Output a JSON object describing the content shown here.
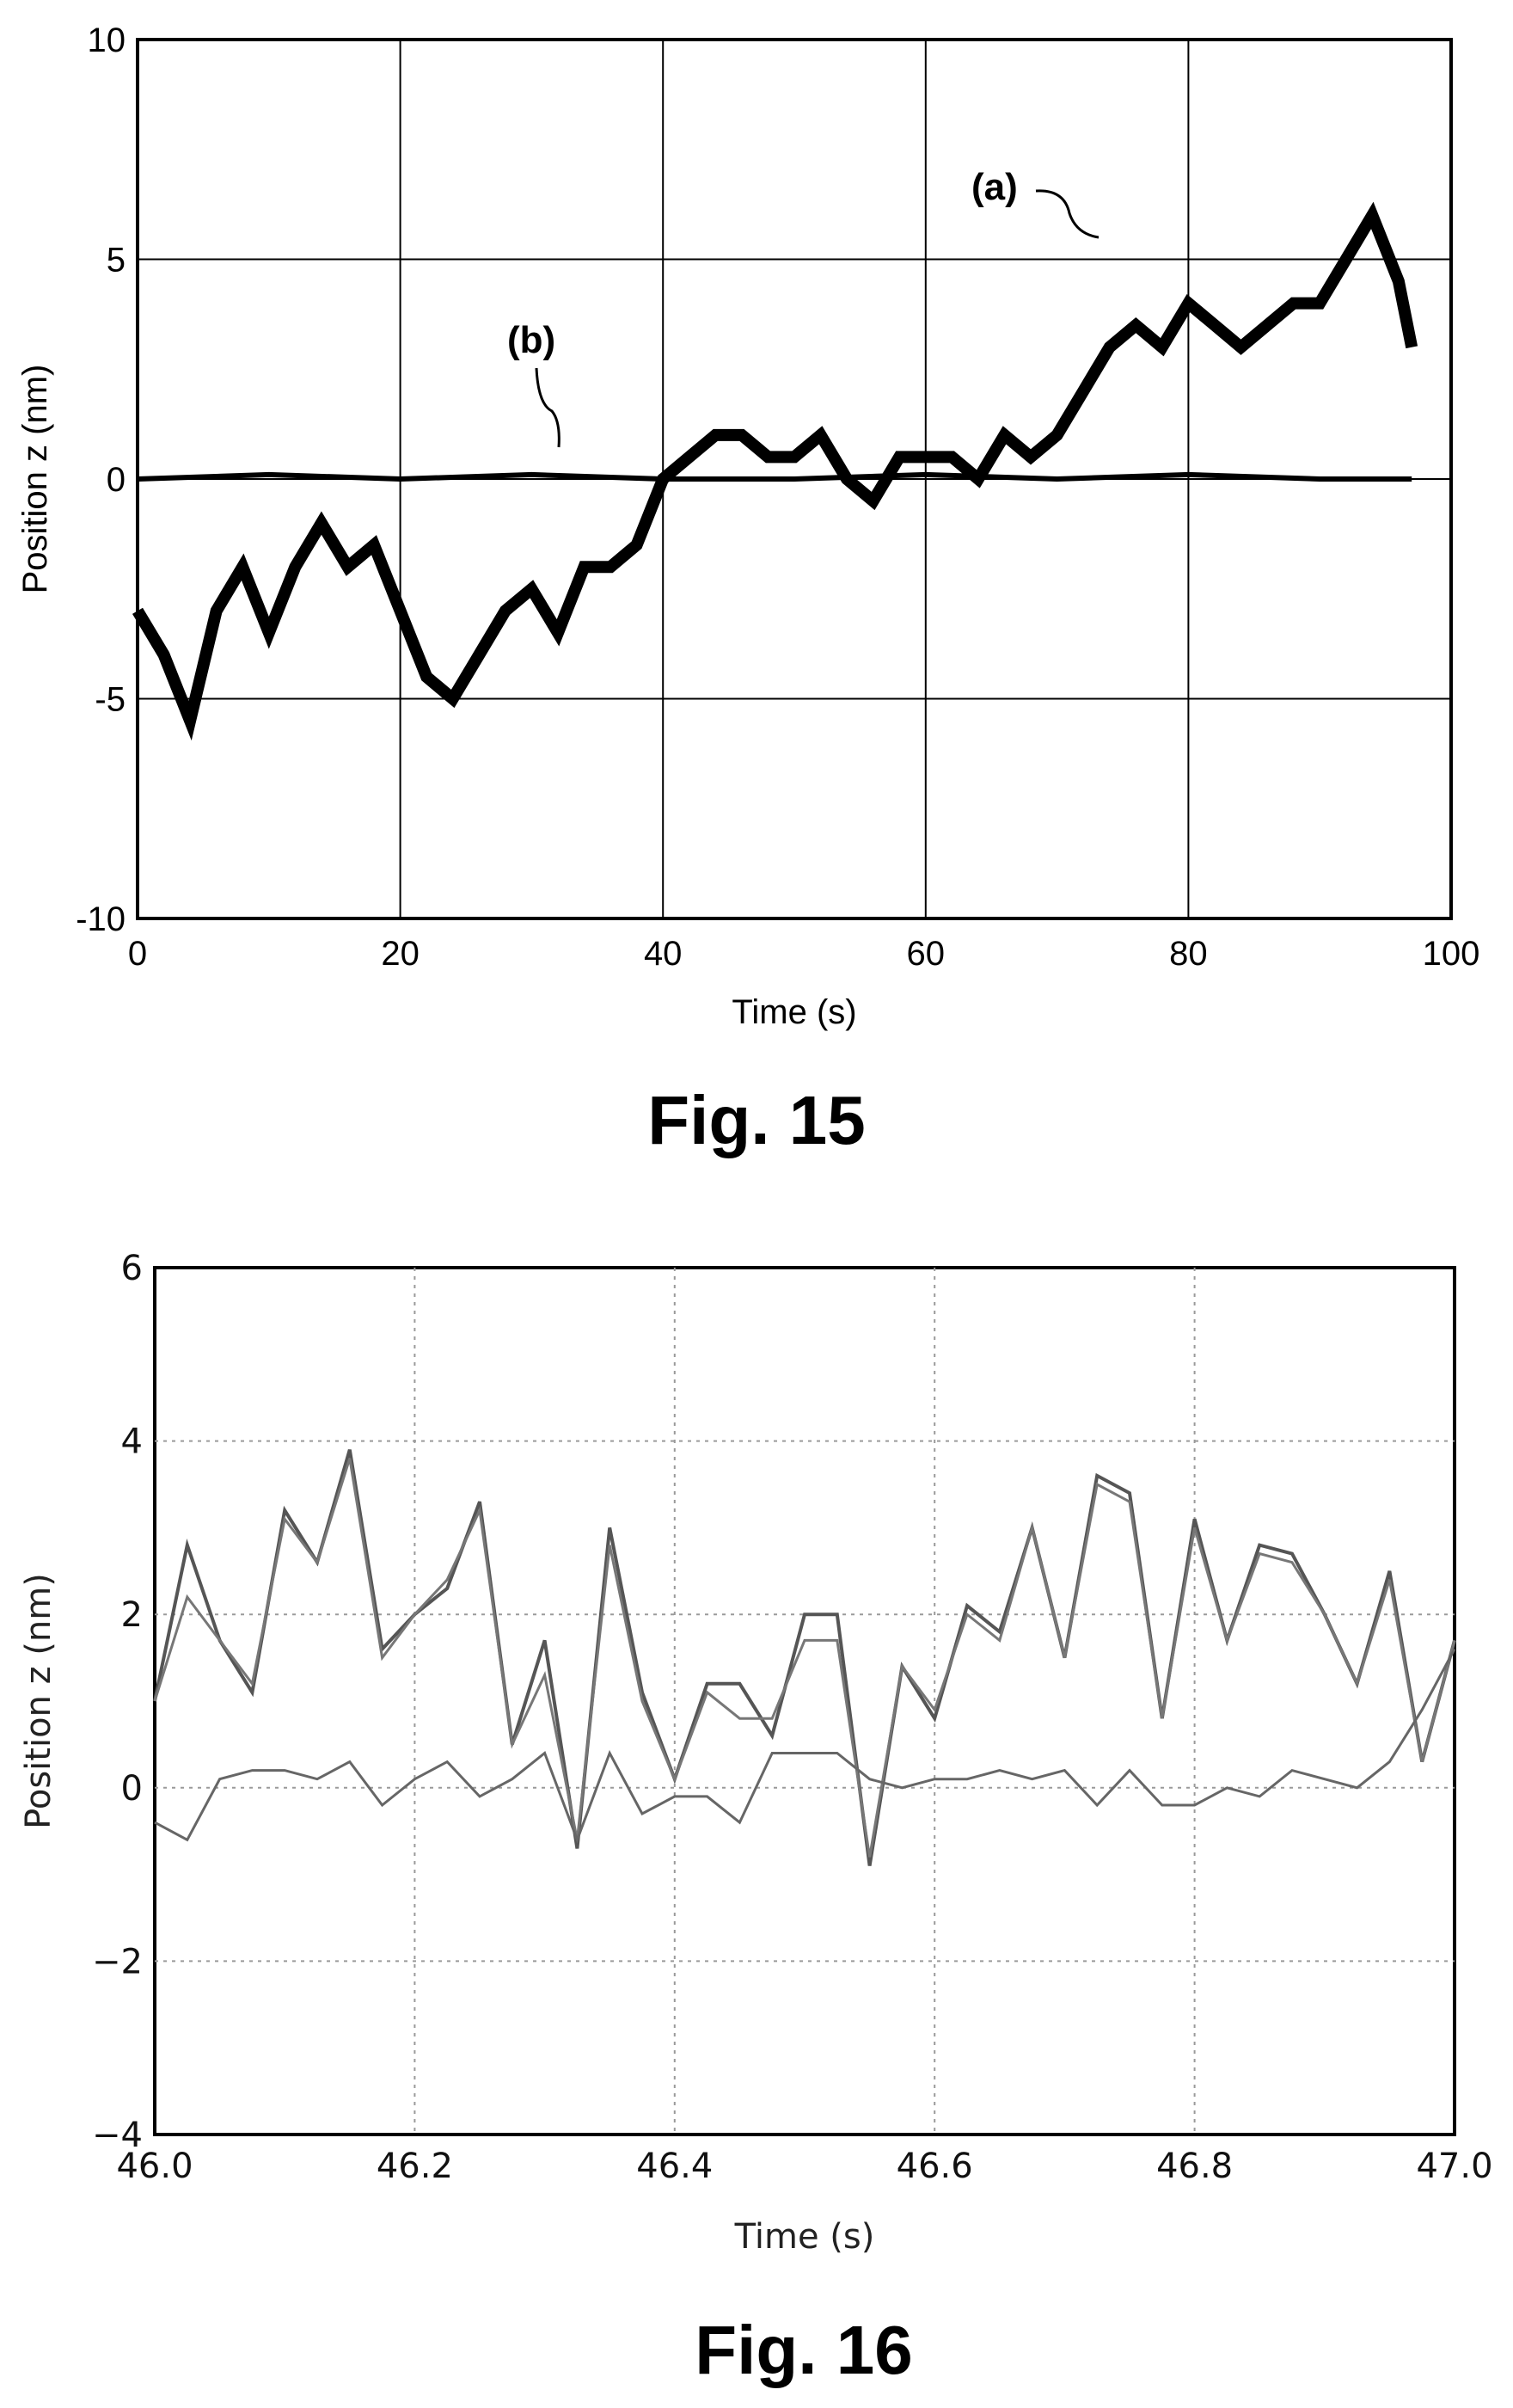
{
  "figures": [
    {
      "caption": "Fig. 15"
    },
    {
      "caption": "Fig. 16"
    }
  ],
  "chart_data": [
    {
      "type": "line",
      "xlabel": "Time (s)",
      "ylabel": "Position z (nm)",
      "xlim": [
        0,
        100
      ],
      "ylim": [
        -10,
        10
      ],
      "xticks": [
        0,
        20,
        40,
        60,
        80,
        100
      ],
      "yticks": [
        -10,
        -5,
        0,
        5,
        10
      ],
      "grid": true,
      "annotations": [
        "(a)",
        "(b)"
      ],
      "series": [
        {
          "name": "(a)",
          "x": [
            0,
            2,
            4,
            6,
            8,
            10,
            12,
            14,
            16,
            18,
            20,
            22,
            24,
            26,
            28,
            30,
            32,
            34,
            36,
            38,
            40,
            42,
            44,
            46,
            48,
            50,
            52,
            54,
            56,
            58,
            60,
            62,
            64,
            66,
            68,
            70,
            72,
            74,
            76,
            78,
            80,
            82,
            84,
            86,
            88,
            90,
            92,
            94,
            96,
            97
          ],
          "y": [
            -3,
            -4,
            -5.5,
            -3,
            -2,
            -3.5,
            -2,
            -1,
            -2,
            -1.5,
            -3,
            -4.5,
            -5,
            -4,
            -3,
            -2.5,
            -3.5,
            -2,
            -2,
            -1.5,
            0,
            0.5,
            1,
            1,
            0.5,
            0.5,
            1,
            0,
            -0.5,
            0.5,
            0.5,
            0.5,
            0,
            1,
            0.5,
            1,
            2,
            3,
            3.5,
            3,
            4,
            3.5,
            3,
            3.5,
            4,
            4,
            5,
            6,
            4.5,
            3
          ]
        },
        {
          "name": "(b)",
          "x": [
            0,
            10,
            20,
            30,
            40,
            50,
            60,
            70,
            80,
            90,
            97
          ],
          "y": [
            0,
            0.1,
            0,
            0.1,
            0,
            0,
            0.1,
            0,
            0.1,
            0,
            0
          ]
        }
      ]
    },
    {
      "type": "line",
      "xlabel": "Time (s)",
      "ylabel": "Position z (nm)",
      "xlim": [
        46.0,
        47.0
      ],
      "ylim": [
        -4,
        6
      ],
      "xticks": [
        "46.0",
        "46.2",
        "46.4",
        "46.6",
        "46.8",
        "47.0"
      ],
      "yticks": [
        "−4",
        "−2",
        "0",
        "2",
        "4",
        "6"
      ],
      "grid": true,
      "series": [
        {
          "x": [
            46.0,
            46.025,
            46.05,
            46.075,
            46.1,
            46.125,
            46.15,
            46.175,
            46.2,
            46.225,
            46.25,
            46.275,
            46.3,
            46.325,
            46.35,
            46.375,
            46.4,
            46.425,
            46.45,
            46.475,
            46.5,
            46.525,
            46.55,
            46.575,
            46.6,
            46.625,
            46.65,
            46.675,
            46.7,
            46.725,
            46.75,
            46.775,
            46.8,
            46.825,
            46.85,
            46.875,
            46.9,
            46.925,
            46.95,
            46.975,
            47.0
          ],
          "y": [
            1.0,
            2.8,
            1.7,
            1.1,
            3.2,
            2.6,
            3.9,
            1.6,
            2.0,
            2.3,
            3.3,
            0.5,
            1.7,
            -0.7,
            3.0,
            1.1,
            0.1,
            1.2,
            1.2,
            0.6,
            2.0,
            2.0,
            -0.9,
            1.4,
            0.8,
            2.1,
            1.8,
            3.0,
            1.5,
            3.6,
            3.4,
            0.8,
            3.1,
            1.7,
            2.8,
            2.7,
            2.0,
            1.2,
            2.5,
            0.3,
            1.7
          ]
        },
        {
          "x": [
            46.0,
            46.025,
            46.05,
            46.075,
            46.1,
            46.125,
            46.15,
            46.175,
            46.2,
            46.225,
            46.25,
            46.275,
            46.3,
            46.325,
            46.35,
            46.375,
            46.4,
            46.425,
            46.45,
            46.475,
            46.5,
            46.525,
            46.55,
            46.575,
            46.6,
            46.625,
            46.65,
            46.675,
            46.7,
            46.725,
            46.75,
            46.775,
            46.8,
            46.825,
            46.85,
            46.875,
            46.9,
            46.925,
            46.95,
            46.975,
            47.0
          ],
          "y": [
            1.0,
            2.2,
            1.7,
            1.2,
            3.1,
            2.6,
            3.8,
            1.5,
            2.0,
            2.4,
            3.2,
            0.5,
            1.3,
            -0.6,
            2.8,
            1.0,
            0.1,
            1.1,
            0.8,
            0.8,
            1.7,
            1.7,
            -0.8,
            1.4,
            0.9,
            2.0,
            1.7,
            3.0,
            1.5,
            3.5,
            3.3,
            0.8,
            3.0,
            1.7,
            2.7,
            2.6,
            2.0,
            1.2,
            2.4,
            0.3,
            1.7
          ]
        },
        {
          "x": [
            46.0,
            46.025,
            46.05,
            46.075,
            46.1,
            46.125,
            46.15,
            46.175,
            46.2,
            46.225,
            46.25,
            46.275,
            46.3,
            46.325,
            46.35,
            46.375,
            46.4,
            46.425,
            46.45,
            46.475,
            46.5,
            46.525,
            46.55,
            46.575,
            46.6,
            46.625,
            46.65,
            46.675,
            46.7,
            46.725,
            46.75,
            46.775,
            46.8,
            46.825,
            46.85,
            46.875,
            46.9,
            46.925,
            46.95,
            46.975,
            47.0
          ],
          "y": [
            -0.4,
            -0.6,
            0.1,
            0.2,
            0.2,
            0.1,
            0.3,
            -0.2,
            0.1,
            0.3,
            -0.1,
            0.1,
            0.4,
            -0.6,
            0.4,
            -0.3,
            -0.1,
            -0.1,
            -0.4,
            0.4,
            0.4,
            0.4,
            0.1,
            0.0,
            0.1,
            0.1,
            0.2,
            0.1,
            0.2,
            -0.2,
            0.2,
            -0.2,
            -0.2,
            0.0,
            -0.1,
            0.2,
            0.1,
            0.0,
            0.3,
            0.9,
            1.6
          ]
        }
      ]
    }
  ]
}
